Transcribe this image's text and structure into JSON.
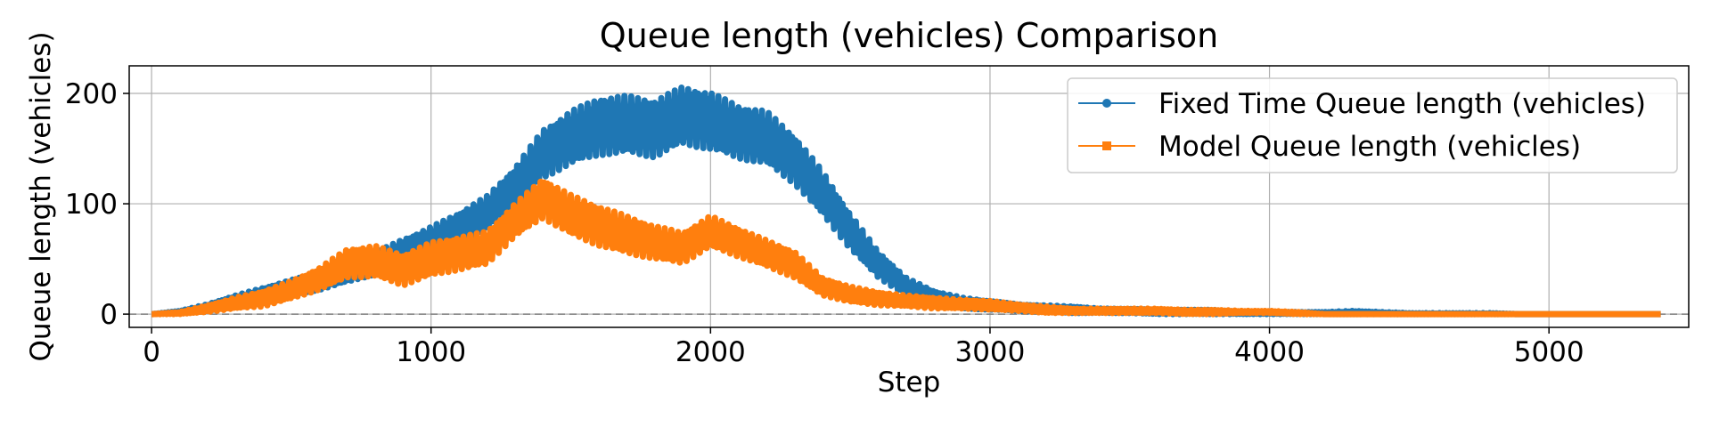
{
  "chart_data": {
    "type": "line",
    "title": "Queue length (vehicles) Comparison",
    "xlabel": "Step",
    "ylabel": "Queue length (vehicles)",
    "xlim": [
      -80,
      5500
    ],
    "ylim": [
      -12,
      225
    ],
    "x_ticks": [
      0,
      1000,
      2000,
      3000,
      4000,
      5000
    ],
    "y_ticks": [
      0,
      100,
      200
    ],
    "grid": true,
    "legend_position": "top-right",
    "reference_line": {
      "y": 0,
      "style": "dashed",
      "color": "#808080"
    },
    "series": [
      {
        "name": "Fixed Time Queue length (vehicles)",
        "color": "#1f77b4",
        "marker": "circle",
        "x": [
          0,
          100,
          200,
          300,
          400,
          500,
          600,
          700,
          800,
          900,
          1000,
          1100,
          1200,
          1300,
          1400,
          1500,
          1600,
          1700,
          1800,
          1900,
          2000,
          2100,
          2200,
          2300,
          2400,
          2500,
          2600,
          2700,
          2800,
          2900,
          3000,
          3100,
          3200,
          3300,
          3400,
          3500,
          3600,
          3700,
          3800,
          3900,
          4000,
          4100,
          4200,
          4300,
          4400,
          4500,
          4600,
          4700,
          4800,
          4900,
          5000,
          5100,
          5200,
          5300,
          5400
        ],
        "y": [
          0,
          2,
          6,
          12,
          18,
          24,
          30,
          38,
          46,
          56,
          66,
          78,
          92,
          115,
          145,
          160,
          170,
          172,
          168,
          180,
          175,
          165,
          160,
          140,
          110,
          75,
          45,
          25,
          15,
          10,
          8,
          6,
          5,
          4,
          3,
          3,
          2,
          2,
          2,
          1,
          1,
          1,
          1,
          1,
          1,
          0,
          0,
          0,
          0,
          0,
          0,
          0,
          0,
          0,
          0
        ],
        "amplitude": [
          0,
          1,
          3,
          5,
          6,
          7,
          8,
          9,
          10,
          12,
          13,
          14,
          15,
          18,
          22,
          24,
          26,
          26,
          26,
          26,
          26,
          24,
          24,
          22,
          20,
          16,
          12,
          8,
          6,
          5,
          4,
          3,
          3,
          3,
          2,
          2,
          2,
          2,
          2,
          1,
          1,
          1,
          1,
          2,
          1,
          1,
          1,
          1,
          1,
          0,
          0,
          0,
          0,
          0,
          0
        ]
      },
      {
        "name": "Model Queue length (vehicles)",
        "color": "#ff7f0e",
        "marker": "square",
        "x": [
          0,
          100,
          200,
          300,
          400,
          500,
          600,
          700,
          800,
          900,
          1000,
          1100,
          1200,
          1300,
          1400,
          1500,
          1600,
          1700,
          1800,
          1900,
          2000,
          2100,
          2200,
          2300,
          2400,
          2500,
          2600,
          2700,
          2800,
          2900,
          3000,
          3100,
          3200,
          3300,
          3400,
          3500,
          3600,
          3700,
          3800,
          3900,
          4000,
          4100,
          4200,
          4300,
          4400,
          4500,
          4600,
          4700,
          4800,
          4900,
          5000,
          5100,
          5200,
          5300,
          5400
        ],
        "y": [
          0,
          1,
          5,
          10,
          14,
          22,
          32,
          46,
          48,
          40,
          50,
          55,
          60,
          85,
          105,
          90,
          80,
          72,
          65,
          60,
          75,
          65,
          55,
          45,
          25,
          18,
          14,
          12,
          10,
          9,
          8,
          6,
          4,
          3,
          3,
          3,
          3,
          2,
          2,
          2,
          2,
          1,
          0,
          0,
          0,
          0,
          0,
          0,
          0,
          0,
          0,
          0,
          0,
          0,
          0
        ],
        "amplitude": [
          0,
          1,
          3,
          5,
          7,
          8,
          10,
          13,
          14,
          14,
          15,
          15,
          15,
          15,
          18,
          18,
          18,
          17,
          15,
          14,
          14,
          13,
          12,
          12,
          8,
          7,
          6,
          5,
          5,
          4,
          4,
          3,
          3,
          2,
          2,
          2,
          2,
          2,
          2,
          1,
          1,
          1,
          0,
          0,
          0,
          0,
          0,
          0,
          0,
          0,
          0,
          0,
          0,
          0,
          0
        ]
      }
    ]
  }
}
